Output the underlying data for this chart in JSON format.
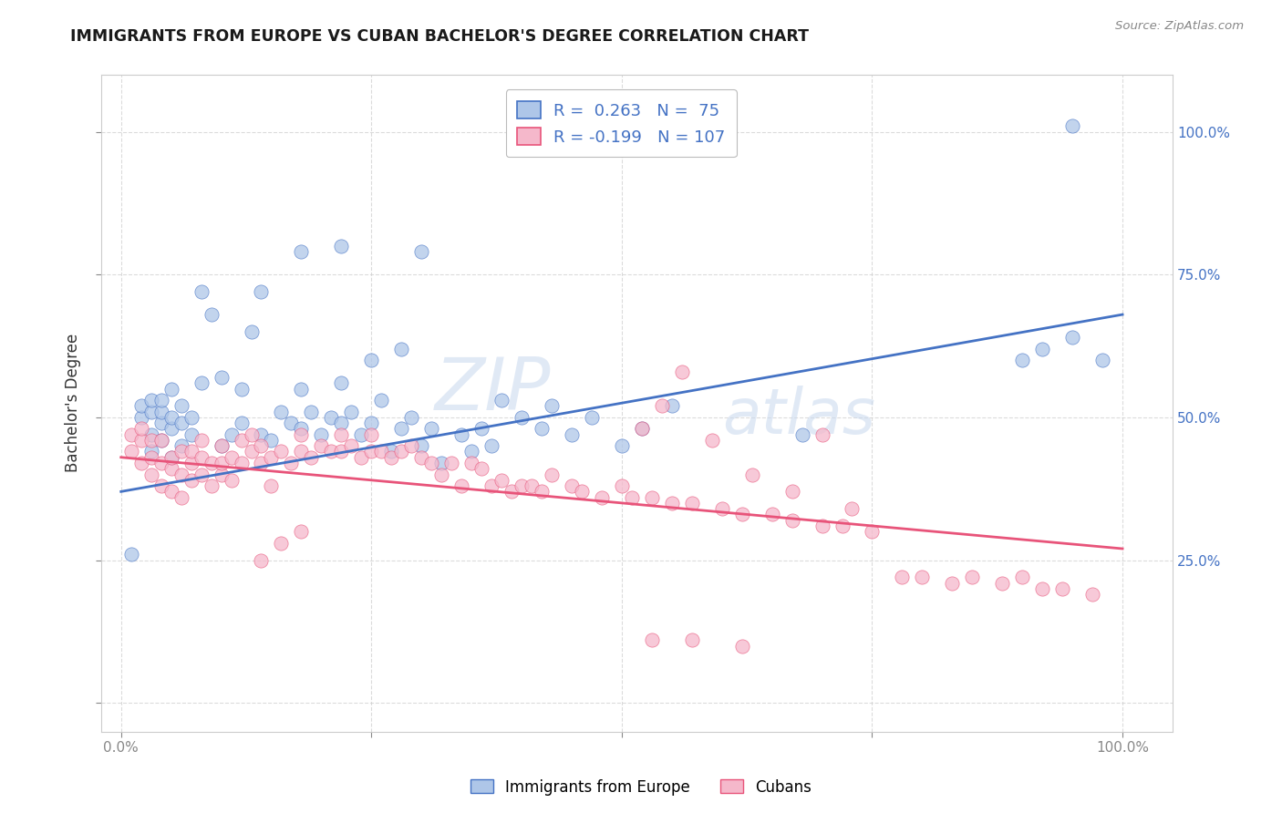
{
  "title": "IMMIGRANTS FROM EUROPE VS CUBAN BACHELOR'S DEGREE CORRELATION CHART",
  "source": "Source: ZipAtlas.com",
  "ylabel": "Bachelor's Degree",
  "legend_labels": [
    "Immigrants from Europe",
    "Cubans"
  ],
  "r_europe": 0.263,
  "n_europe": 75,
  "r_cubans": -0.199,
  "n_cubans": 107,
  "europe_color": "#aec6e8",
  "cubans_color": "#f5b8cb",
  "europe_line_color": "#4472C4",
  "cubans_line_color": "#e8547a",
  "watermark_zip": "ZIP",
  "watermark_atlas": "atlas",
  "background_color": "#ffffff",
  "grid_color": "#cccccc",
  "right_ytick_labels": [
    "25.0%",
    "50.0%",
    "75.0%",
    "100.0%"
  ],
  "right_ytick_positions": [
    0.25,
    0.5,
    0.75,
    1.0
  ],
  "xlim": [
    -0.02,
    1.05
  ],
  "ylim": [
    -0.05,
    1.1
  ],
  "europe_x": [
    0.01,
    0.02,
    0.02,
    0.03,
    0.03,
    0.03,
    0.03,
    0.04,
    0.04,
    0.04,
    0.04,
    0.05,
    0.05,
    0.05,
    0.05,
    0.06,
    0.06,
    0.06,
    0.07,
    0.07,
    0.08,
    0.08,
    0.09,
    0.1,
    0.1,
    0.11,
    0.12,
    0.12,
    0.13,
    0.14,
    0.14,
    0.15,
    0.16,
    0.17,
    0.18,
    0.18,
    0.19,
    0.2,
    0.21,
    0.22,
    0.22,
    0.23,
    0.24,
    0.25,
    0.26,
    0.27,
    0.28,
    0.29,
    0.3,
    0.31,
    0.32,
    0.34,
    0.35,
    0.36,
    0.37,
    0.38,
    0.4,
    0.42,
    0.43,
    0.45,
    0.47,
    0.5,
    0.52,
    0.55,
    0.3,
    0.18,
    0.22,
    0.25,
    0.28,
    0.9,
    0.92,
    0.95,
    0.95,
    0.98,
    0.68
  ],
  "europe_y": [
    0.26,
    0.5,
    0.52,
    0.44,
    0.47,
    0.51,
    0.53,
    0.46,
    0.49,
    0.51,
    0.53,
    0.43,
    0.48,
    0.5,
    0.55,
    0.45,
    0.49,
    0.52,
    0.47,
    0.5,
    0.56,
    0.72,
    0.68,
    0.45,
    0.57,
    0.47,
    0.49,
    0.55,
    0.65,
    0.47,
    0.72,
    0.46,
    0.51,
    0.49,
    0.48,
    0.55,
    0.51,
    0.47,
    0.5,
    0.49,
    0.56,
    0.51,
    0.47,
    0.49,
    0.53,
    0.44,
    0.48,
    0.5,
    0.45,
    0.48,
    0.42,
    0.47,
    0.44,
    0.48,
    0.45,
    0.53,
    0.5,
    0.48,
    0.52,
    0.47,
    0.5,
    0.45,
    0.48,
    0.52,
    0.79,
    0.79,
    0.8,
    0.6,
    0.62,
    0.6,
    0.62,
    0.64,
    1.01,
    0.6,
    0.47
  ],
  "cubans_x": [
    0.01,
    0.01,
    0.02,
    0.02,
    0.02,
    0.03,
    0.03,
    0.03,
    0.04,
    0.04,
    0.04,
    0.05,
    0.05,
    0.05,
    0.06,
    0.06,
    0.06,
    0.07,
    0.07,
    0.07,
    0.08,
    0.08,
    0.08,
    0.09,
    0.09,
    0.1,
    0.1,
    0.1,
    0.11,
    0.11,
    0.12,
    0.12,
    0.13,
    0.13,
    0.14,
    0.14,
    0.15,
    0.15,
    0.16,
    0.17,
    0.18,
    0.18,
    0.19,
    0.2,
    0.21,
    0.22,
    0.22,
    0.23,
    0.24,
    0.25,
    0.25,
    0.26,
    0.27,
    0.28,
    0.29,
    0.3,
    0.31,
    0.32,
    0.33,
    0.34,
    0.35,
    0.36,
    0.37,
    0.38,
    0.39,
    0.4,
    0.41,
    0.42,
    0.43,
    0.45,
    0.46,
    0.48,
    0.5,
    0.51,
    0.53,
    0.55,
    0.57,
    0.6,
    0.62,
    0.65,
    0.67,
    0.7,
    0.72,
    0.75,
    0.78,
    0.8,
    0.83,
    0.85,
    0.88,
    0.9,
    0.92,
    0.94,
    0.97,
    0.14,
    0.16,
    0.18,
    0.52,
    0.54,
    0.56,
    0.59,
    0.63,
    0.67,
    0.7,
    0.73,
    0.53,
    0.57,
    0.62
  ],
  "cubans_y": [
    0.44,
    0.47,
    0.42,
    0.46,
    0.48,
    0.4,
    0.43,
    0.46,
    0.38,
    0.42,
    0.46,
    0.37,
    0.41,
    0.43,
    0.36,
    0.4,
    0.44,
    0.39,
    0.42,
    0.44,
    0.4,
    0.43,
    0.46,
    0.38,
    0.42,
    0.4,
    0.42,
    0.45,
    0.39,
    0.43,
    0.42,
    0.46,
    0.44,
    0.47,
    0.42,
    0.45,
    0.38,
    0.43,
    0.44,
    0.42,
    0.44,
    0.47,
    0.43,
    0.45,
    0.44,
    0.44,
    0.47,
    0.45,
    0.43,
    0.44,
    0.47,
    0.44,
    0.43,
    0.44,
    0.45,
    0.43,
    0.42,
    0.4,
    0.42,
    0.38,
    0.42,
    0.41,
    0.38,
    0.39,
    0.37,
    0.38,
    0.38,
    0.37,
    0.4,
    0.38,
    0.37,
    0.36,
    0.38,
    0.36,
    0.36,
    0.35,
    0.35,
    0.34,
    0.33,
    0.33,
    0.32,
    0.31,
    0.31,
    0.3,
    0.22,
    0.22,
    0.21,
    0.22,
    0.21,
    0.22,
    0.2,
    0.2,
    0.19,
    0.25,
    0.28,
    0.3,
    0.48,
    0.52,
    0.58,
    0.46,
    0.4,
    0.37,
    0.47,
    0.34,
    0.11,
    0.11,
    0.1
  ]
}
